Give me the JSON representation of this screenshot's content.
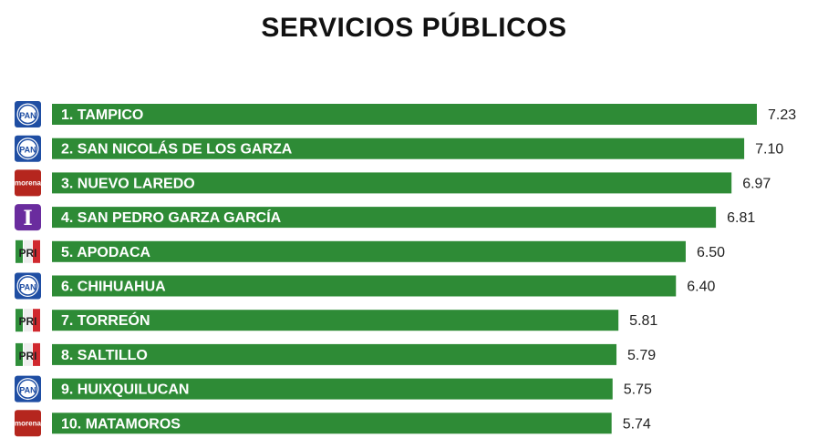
{
  "chart_data": {
    "type": "bar",
    "orientation": "horizontal",
    "title": "SERVICIOS PÚBLICOS",
    "categories": [
      "1. TAMPICO",
      "2. SAN NICOLÁS DE LOS GARZA",
      "3. NUEVO LAREDO",
      "4. SAN PEDRO GARZA GARCÍA",
      "5. APODACA",
      "6. CHIHUAHUA",
      "7. TORREÓN",
      "8. SALTILLO",
      "9. HUIXQUILUCAN",
      "10. MATAMOROS"
    ],
    "values": [
      7.23,
      7.1,
      6.97,
      6.81,
      6.5,
      6.4,
      5.81,
      5.79,
      5.75,
      5.74
    ],
    "value_labels": [
      "7.23",
      "7.10",
      "6.97",
      "6.81",
      "6.50",
      "6.40",
      "5.81",
      "5.79",
      "5.75",
      "5.74"
    ],
    "parties": [
      "PAN",
      "PAN",
      "morena",
      "I",
      "PRI",
      "PAN",
      "PRI",
      "PRI",
      "PAN",
      "morena"
    ],
    "xlim": [
      0,
      7.23
    ],
    "bar_color": "#2e8b36",
    "grid": false
  }
}
